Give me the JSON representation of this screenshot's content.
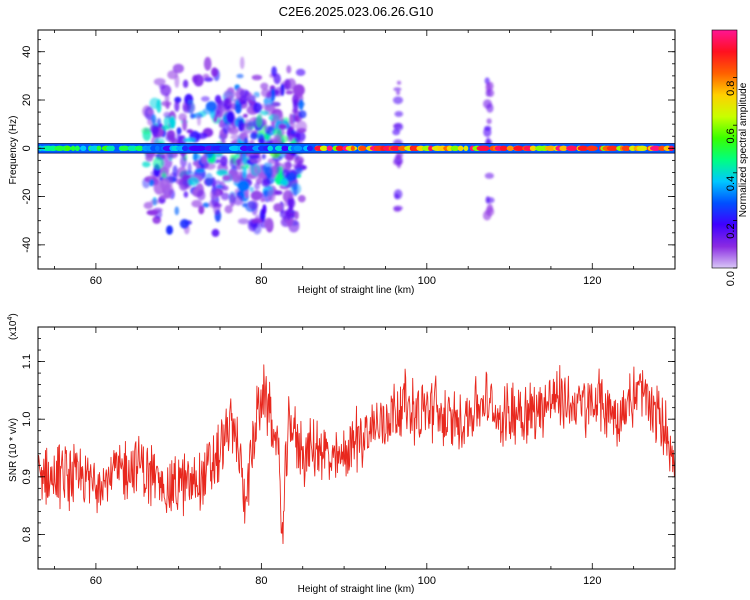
{
  "title": "C2E6.2025.023.06.26.G10",
  "chart_data": [
    {
      "type": "heatmap",
      "xlabel": "Height of straight line (km)",
      "ylabel": "Frequency (Hz)",
      "xlim": [
        53,
        130
      ],
      "ylim": [
        -50,
        49
      ],
      "xticks": [
        "60",
        "80",
        "100",
        "120"
      ],
      "yticks": [
        "-40",
        "-20",
        "0",
        "20",
        "40"
      ],
      "colorbar": {
        "label": "Normalized spectral amplitude",
        "ticks": [
          "0.0",
          "0.2",
          "0.4",
          "0.6",
          "0.8"
        ],
        "range": [
          0,
          1
        ],
        "colormap": [
          "#d9c8f6",
          "#8a2be2",
          "#3f00ff",
          "#0050ff",
          "#00c8ff",
          "#00ff80",
          "#39ff00",
          "#c8ff00",
          "#ffd000",
          "#ff6000",
          "#ff1020",
          "#ff1493"
        ]
      },
      "band": {
        "center_hz": 0,
        "halfwidth_hz": 2
      },
      "scatter_regions": [
        {
          "x": [
            66,
            78
          ],
          "y": [
            -38,
            38
          ]
        },
        {
          "x": [
            77,
            85
          ],
          "y": [
            -40,
            40
          ]
        }
      ],
      "spikes_km": [
        96.5,
        107.5
      ],
      "grid": false
    },
    {
      "type": "line",
      "xlabel": "Height of straight line (km)",
      "ylabel": "SNR (10 * v/v)",
      "multiplier": "(x10",
      "multiplier_exp": "4",
      "xlim": [
        53,
        130
      ],
      "ylim": [
        0.74,
        1.16
      ],
      "xticks": [
        "60",
        "80",
        "100",
        "120"
      ],
      "yticks": [
        "0.8",
        "0.9",
        "1.0",
        "1.1"
      ],
      "color": "#e8281e",
      "series": [
        {
          "x": [
            53,
            55,
            57,
            59,
            61,
            63,
            65,
            67,
            69,
            71,
            73,
            75,
            76,
            77,
            78,
            79,
            80,
            81,
            82,
            82.6,
            83,
            83.5,
            84,
            85,
            87,
            89,
            91,
            93,
            95,
            97,
            99,
            101,
            103,
            105,
            107,
            109,
            111,
            113,
            115,
            117,
            119,
            121,
            123,
            125,
            126,
            127,
            128,
            129,
            130
          ],
          "values": [
            0.9,
            0.9,
            0.9,
            0.89,
            0.9,
            0.91,
            0.92,
            0.9,
            0.88,
            0.89,
            0.9,
            0.94,
            0.99,
            0.97,
            0.86,
            0.96,
            1.04,
            1.02,
            0.94,
            0.8,
            0.93,
            1.01,
            0.97,
            0.94,
            0.95,
            0.92,
            0.96,
            0.98,
            1.0,
            1.03,
            1.01,
            1.02,
            0.99,
            1.01,
            1.03,
            1.0,
            1.02,
            1.01,
            1.04,
            1.03,
            1.02,
            1.03,
            1.0,
            1.04,
            1.05,
            1.02,
            1.0,
            0.98,
            0.93
          ]
        }
      ],
      "grid": false
    }
  ]
}
